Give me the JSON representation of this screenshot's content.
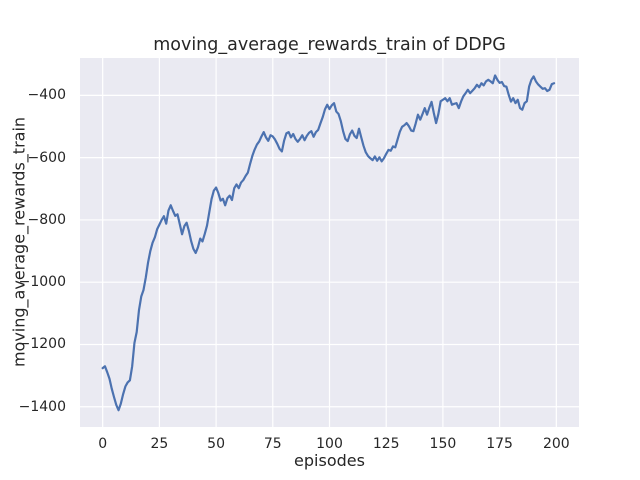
{
  "colors": {
    "figure_bg": "#FFFFFF",
    "axes_bg": "#EAEAF2",
    "grid": "#FFFFFF",
    "line": "#4C72B0",
    "text": "#262626"
  },
  "chart_data": {
    "type": "line",
    "title": "moving_average_rewards_train of DDPG",
    "xlabel": "episodes",
    "ylabel": "moving_average_rewards_train",
    "xlim": [
      -10,
      210
    ],
    "ylim": [
      -1465,
      -280
    ],
    "x_ticks": [
      0,
      25,
      50,
      75,
      100,
      125,
      150,
      175,
      200
    ],
    "y_ticks": [
      -400,
      -600,
      -800,
      -1000,
      -1200,
      -1400
    ],
    "grid": true,
    "legend_position": "none",
    "style": "seaborn-darkgrid",
    "series": [
      {
        "name": "moving_average_rewards_train",
        "color": "#4C72B0",
        "x": [
          0,
          1,
          2,
          3,
          4,
          5,
          6,
          7,
          8,
          9,
          10,
          11,
          12,
          13,
          14,
          15,
          16,
          17,
          18,
          19,
          20,
          21,
          22,
          23,
          24,
          25,
          26,
          27,
          28,
          29,
          30,
          31,
          32,
          33,
          34,
          35,
          36,
          37,
          38,
          39,
          40,
          41,
          42,
          43,
          44,
          45,
          46,
          47,
          48,
          49,
          50,
          51,
          52,
          53,
          54,
          55,
          56,
          57,
          58,
          59,
          60,
          61,
          62,
          63,
          64,
          65,
          66,
          67,
          68,
          69,
          70,
          71,
          72,
          73,
          74,
          75,
          76,
          77,
          78,
          79,
          80,
          81,
          82,
          83,
          84,
          85,
          86,
          87,
          88,
          89,
          90,
          91,
          92,
          93,
          94,
          95,
          96,
          97,
          98,
          99,
          100,
          101,
          102,
          103,
          104,
          105,
          106,
          107,
          108,
          109,
          110,
          111,
          112,
          113,
          114,
          115,
          116,
          117,
          118,
          119,
          120,
          121,
          122,
          123,
          124,
          125,
          126,
          127,
          128,
          129,
          130,
          131,
          132,
          133,
          134,
          135,
          136,
          137,
          138,
          139,
          140,
          141,
          142,
          143,
          144,
          145,
          146,
          147,
          148,
          149,
          150,
          151,
          152,
          153,
          154,
          155,
          156,
          157,
          158,
          159,
          160,
          161,
          162,
          163,
          164,
          165,
          166,
          167,
          168,
          169,
          170,
          171,
          172,
          173,
          174,
          175,
          176,
          177,
          178,
          179,
          180,
          181,
          182,
          183,
          184,
          185,
          186,
          187,
          188,
          189,
          190,
          191,
          192,
          193,
          194,
          195,
          196,
          197,
          198,
          199
        ],
        "y": [
          -1276,
          -1270,
          -1289,
          -1310,
          -1342,
          -1369,
          -1394,
          -1411,
          -1390,
          -1360,
          -1335,
          -1322,
          -1315,
          -1270,
          -1195,
          -1160,
          -1090,
          -1046,
          -1025,
          -985,
          -937,
          -900,
          -873,
          -856,
          -830,
          -815,
          -800,
          -788,
          -812,
          -770,
          -753,
          -771,
          -787,
          -782,
          -814,
          -846,
          -820,
          -809,
          -835,
          -868,
          -893,
          -906,
          -888,
          -860,
          -869,
          -845,
          -818,
          -775,
          -733,
          -706,
          -696,
          -714,
          -738,
          -732,
          -753,
          -730,
          -722,
          -736,
          -698,
          -686,
          -698,
          -680,
          -672,
          -659,
          -648,
          -620,
          -594,
          -574,
          -558,
          -548,
          -532,
          -518,
          -535,
          -546,
          -528,
          -532,
          -542,
          -556,
          -572,
          -580,
          -545,
          -522,
          -518,
          -535,
          -524,
          -540,
          -549,
          -540,
          -528,
          -544,
          -530,
          -520,
          -515,
          -533,
          -518,
          -511,
          -490,
          -470,
          -445,
          -430,
          -444,
          -432,
          -425,
          -452,
          -460,
          -483,
          -515,
          -540,
          -547,
          -525,
          -513,
          -530,
          -537,
          -507,
          -535,
          -562,
          -583,
          -595,
          -602,
          -608,
          -596,
          -610,
          -599,
          -612,
          -602,
          -588,
          -575,
          -578,
          -564,
          -567,
          -542,
          -517,
          -501,
          -496,
          -489,
          -499,
          -513,
          -515,
          -490,
          -462,
          -478,
          -460,
          -441,
          -462,
          -440,
          -421,
          -457,
          -489,
          -460,
          -419,
          -414,
          -409,
          -419,
          -409,
          -430,
          -427,
          -425,
          -441,
          -420,
          -403,
          -393,
          -382,
          -393,
          -385,
          -377,
          -366,
          -374,
          -361,
          -368,
          -355,
          -350,
          -355,
          -361,
          -336,
          -350,
          -360,
          -357,
          -370,
          -372,
          -398,
          -420,
          -409,
          -425,
          -414,
          -441,
          -446,
          -425,
          -419,
          -372,
          -350,
          -339,
          -355,
          -365,
          -372,
          -379,
          -377,
          -386,
          -382,
          -364,
          -361
        ]
      }
    ]
  }
}
